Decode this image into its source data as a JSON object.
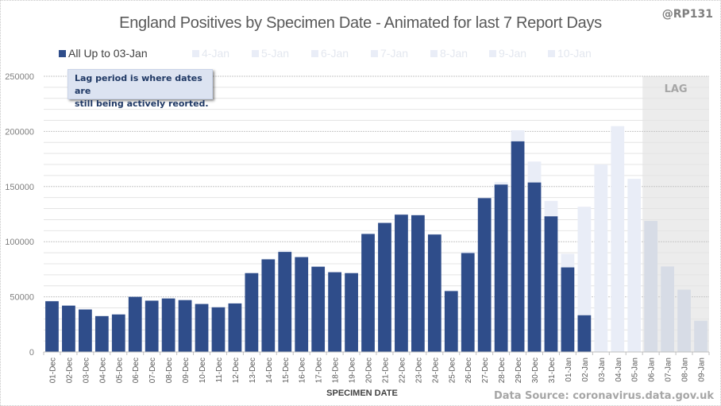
{
  "header": {
    "title": "England Positives by Specimen Date - Animated for last 7 Report Days",
    "handle": "@RP131"
  },
  "callout": {
    "line1": "Lag period is where dates are",
    "line2": "still being actively  reorted."
  },
  "footer": {
    "source": "Data Source: coronavirus.data.gov.uk"
  },
  "colors": {
    "primary": "#2f4d8a",
    "later_reports": "#e9edf7",
    "lag_shading": "#ececec",
    "lag_bars": "#d7dce6"
  },
  "chart_data": {
    "type": "bar",
    "stacked": true,
    "title": "England Positives by Specimen Date - Animated for last 7 Report Days",
    "xlabel": "SPECIMEN DATE",
    "ylabel": "",
    "ylim": [
      0,
      250000
    ],
    "yticks": [
      0,
      50000,
      100000,
      150000,
      200000,
      250000
    ],
    "ytick_labels": [
      "0",
      "50000",
      "100000",
      "150000",
      "200000",
      "250000"
    ],
    "minor_grid_step": 10000,
    "grid": true,
    "legend_position": "top",
    "legend": [
      {
        "label": "All Up to 03-Jan",
        "active": true
      },
      {
        "label": "4-Jan",
        "active": false
      },
      {
        "label": "5-Jan",
        "active": false
      },
      {
        "label": "6-Jan",
        "active": false
      },
      {
        "label": "7-Jan",
        "active": false
      },
      {
        "label": "8-Jan",
        "active": false
      },
      {
        "label": "9-Jan",
        "active": false
      },
      {
        "label": "10-Jan",
        "active": false
      }
    ],
    "categories": [
      "01-Dec",
      "02-Dec",
      "03-Dec",
      "04-Dec",
      "05-Dec",
      "06-Dec",
      "07-Dec",
      "08-Dec",
      "09-Dec",
      "10-Dec",
      "11-Dec",
      "12-Dec",
      "13-Dec",
      "14-Dec",
      "15-Dec",
      "16-Dec",
      "17-Dec",
      "18-Dec",
      "19-Dec",
      "20-Dec",
      "21-Dec",
      "22-Dec",
      "23-Dec",
      "24-Dec",
      "25-Dec",
      "26-Dec",
      "27-Dec",
      "28-Dec",
      "29-Dec",
      "30-Dec",
      "31-Dec",
      "01-Jan",
      "02-Jan",
      "03-Jan",
      "04-Jan",
      "05-Jan",
      "06-Jan",
      "07-Jan",
      "08-Jan",
      "09-Jan"
    ],
    "series": [
      {
        "name": "All Up to 03-Jan",
        "values": [
          46000,
          42000,
          38500,
          32500,
          34000,
          50000,
          46500,
          48500,
          47000,
          43500,
          40500,
          44000,
          71500,
          84000,
          90700,
          86000,
          77300,
          72300,
          71500,
          107000,
          117000,
          124500,
          124000,
          106500,
          55200,
          89700,
          139500,
          151800,
          191000,
          153700,
          123000,
          76700,
          33300,
          0,
          0,
          0,
          0,
          0,
          0,
          0
        ]
      },
      {
        "name": "Total incl. later report days (4-Jan to 10-Jan)",
        "values": [
          46500,
          42500,
          39000,
          33000,
          34500,
          50200,
          46800,
          48800,
          47500,
          43800,
          40800,
          44300,
          71800,
          84500,
          92000,
          86500,
          77800,
          72800,
          71800,
          107500,
          117500,
          125000,
          124500,
          107000,
          56000,
          91000,
          140000,
          154000,
          201000,
          172700,
          137000,
          89000,
          131700,
          170000,
          204800,
          157000,
          118800,
          77500,
          56500,
          28300
        ]
      }
    ],
    "lag_period": {
      "label": "LAG",
      "start": "06-Jan",
      "end": "09-Jan"
    }
  }
}
